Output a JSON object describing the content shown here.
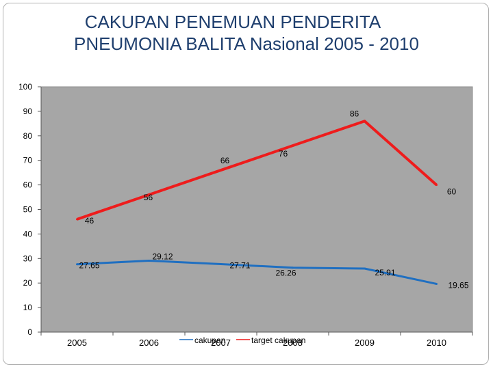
{
  "title_line1": "CAKUPAN PENEMUAN PENDERITA",
  "title_line2": "PNEUMONIA BALITA  Nasional  2005 - 2010",
  "chart_data": {
    "type": "line",
    "title": "CAKUPAN PENEMUAN PENDERITA PNEUMONIA BALITA  Nasional  2005 - 2010",
    "categories": [
      "2005",
      "2006",
      "2007",
      "2008",
      "2009",
      "2010"
    ],
    "ylim": [
      0,
      100
    ],
    "yticks": [
      0,
      10,
      20,
      30,
      40,
      50,
      60,
      70,
      80,
      90,
      100
    ],
    "grid": false,
    "legend_position": "bottom",
    "plot_background": "#a6a6a6",
    "series": [
      {
        "name": "cakupan",
        "color": "#1f6fc1",
        "values": [
          27.65,
          29.12,
          27.71,
          26.26,
          25.91,
          19.65
        ],
        "labels": [
          "27.65",
          "29.12",
          "27.71",
          "26.26",
          "25.91",
          "19.65"
        ]
      },
      {
        "name": "target cakupan",
        "color": "#ee1c1c",
        "values": [
          46,
          56,
          66,
          76,
          86,
          60
        ],
        "labels": [
          "46",
          "56",
          "66",
          "76",
          "86",
          "60"
        ]
      }
    ]
  }
}
